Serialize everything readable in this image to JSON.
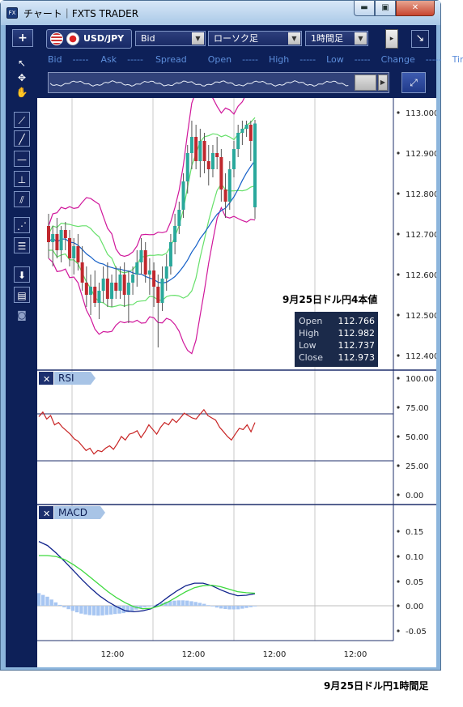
{
  "window": {
    "app_icon": "FX",
    "title": "チャート｜FXTS TRADER",
    "min": "▬",
    "max": "▣",
    "close": "✕"
  },
  "toolbar": {
    "add": "+",
    "symbol": "USD/JPY",
    "price_type": "Bid",
    "chart_type": "ローソク足",
    "timeframe": "1時間足",
    "detach": "↘",
    "dropdown_arrow": "▼"
  },
  "quote": {
    "bid_label": "Bid",
    "bid": "-----",
    "ask_label": "Ask",
    "ask": "-----",
    "spread_label": "Spread",
    "open_label": "Open",
    "open": "-----",
    "high_label": "High",
    "high": "-----",
    "low_label": "Low",
    "low": "-----",
    "change_label": "Change",
    "change": "-----",
    "time_label": "Time"
  },
  "tools": [
    "pointer-icon",
    "crosshair-icon",
    "hand-icon",
    "trendline-icon",
    "line-icon",
    "horizontal-line-icon",
    "vertical-line-icon",
    "channel-icon",
    "fibonacci-fan-icon",
    "fibonacci-levels-icon",
    "download-icon",
    "list-icon",
    "camera-icon"
  ],
  "chart": {
    "annotation_title": "9月25日ドル円4本値",
    "ohlc": [
      {
        "label": "Open",
        "value": "112.766"
      },
      {
        "label": "High",
        "value": "112.982"
      },
      {
        "label": "Low",
        "value": "112.737"
      },
      {
        "label": "Close",
        "value": "112.973"
      }
    ],
    "price_ticks": [
      "113.000",
      "112.900",
      "112.800",
      "112.700",
      "112.600",
      "112.500",
      "112.400"
    ],
    "time_ticks": [
      "12:00",
      "12:00",
      "12:00",
      "12:00"
    ],
    "rsi": {
      "close": "✕",
      "label": "RSI",
      "ticks": [
        "100.00",
        "75.00",
        "50.00",
        "25.00",
        "0.00"
      ]
    },
    "macd": {
      "close": "✕",
      "label": "MACD",
      "ticks": [
        "0.15",
        "0.10",
        "0.05",
        "0.00",
        "-0.05"
      ]
    },
    "colors": {
      "up": "#2aa89c",
      "down": "#c0282e",
      "bollinger_outer": "#d0179b",
      "bollinger_inner": "#66e06a",
      "ma": "#1560c8",
      "rsi": "#c82424",
      "macd": "#10238c",
      "signal": "#3ed93e",
      "hist": "#a7c6f2"
    }
  },
  "chart_data": {
    "type": "candlestick",
    "ylim": [
      112.36,
      113.06
    ],
    "rsi_levels": [
      70,
      30
    ],
    "candles": [
      {
        "o": 112.72,
        "h": 112.75,
        "l": 112.64,
        "c": 112.68
      },
      {
        "o": 112.68,
        "h": 112.72,
        "l": 112.62,
        "c": 112.7
      },
      {
        "o": 112.7,
        "h": 112.74,
        "l": 112.64,
        "c": 112.66
      },
      {
        "o": 112.66,
        "h": 112.72,
        "l": 112.63,
        "c": 112.71
      },
      {
        "o": 112.71,
        "h": 112.73,
        "l": 112.66,
        "c": 112.69
      },
      {
        "o": 112.69,
        "h": 112.71,
        "l": 112.62,
        "c": 112.64
      },
      {
        "o": 112.64,
        "h": 112.69,
        "l": 112.6,
        "c": 112.67
      },
      {
        "o": 112.67,
        "h": 112.7,
        "l": 112.61,
        "c": 112.63
      },
      {
        "o": 112.63,
        "h": 112.67,
        "l": 112.56,
        "c": 112.58
      },
      {
        "o": 112.58,
        "h": 112.62,
        "l": 112.52,
        "c": 112.55
      },
      {
        "o": 112.55,
        "h": 112.6,
        "l": 112.5,
        "c": 112.57
      },
      {
        "o": 112.57,
        "h": 112.61,
        "l": 112.52,
        "c": 112.53
      },
      {
        "o": 112.53,
        "h": 112.58,
        "l": 112.49,
        "c": 112.56
      },
      {
        "o": 112.56,
        "h": 112.62,
        "l": 112.53,
        "c": 112.59
      },
      {
        "o": 112.59,
        "h": 112.63,
        "l": 112.52,
        "c": 112.54
      },
      {
        "o": 112.54,
        "h": 112.6,
        "l": 112.52,
        "c": 112.58
      },
      {
        "o": 112.58,
        "h": 112.62,
        "l": 112.54,
        "c": 112.56
      },
      {
        "o": 112.56,
        "h": 112.62,
        "l": 112.54,
        "c": 112.6
      },
      {
        "o": 112.6,
        "h": 112.63,
        "l": 112.52,
        "c": 112.55
      },
      {
        "o": 112.55,
        "h": 112.61,
        "l": 112.48,
        "c": 112.58
      },
      {
        "o": 112.58,
        "h": 112.62,
        "l": 112.55,
        "c": 112.6
      },
      {
        "o": 112.6,
        "h": 112.66,
        "l": 112.57,
        "c": 112.63
      },
      {
        "o": 112.63,
        "h": 112.69,
        "l": 112.6,
        "c": 112.66
      },
      {
        "o": 112.66,
        "h": 112.68,
        "l": 112.58,
        "c": 112.6
      },
      {
        "o": 112.6,
        "h": 112.64,
        "l": 112.55,
        "c": 112.61
      },
      {
        "o": 112.61,
        "h": 112.63,
        "l": 112.52,
        "c": 112.57
      },
      {
        "o": 112.57,
        "h": 112.6,
        "l": 112.42,
        "c": 112.53
      },
      {
        "o": 112.53,
        "h": 112.62,
        "l": 112.51,
        "c": 112.59
      },
      {
        "o": 112.59,
        "h": 112.65,
        "l": 112.56,
        "c": 112.62
      },
      {
        "o": 112.62,
        "h": 112.7,
        "l": 112.6,
        "c": 112.68
      },
      {
        "o": 112.68,
        "h": 112.75,
        "l": 112.65,
        "c": 112.72
      },
      {
        "o": 112.72,
        "h": 112.78,
        "l": 112.7,
        "c": 112.76
      },
      {
        "o": 112.76,
        "h": 112.85,
        "l": 112.74,
        "c": 112.83
      },
      {
        "o": 112.83,
        "h": 112.92,
        "l": 112.8,
        "c": 112.9
      },
      {
        "o": 112.9,
        "h": 112.98,
        "l": 112.86,
        "c": 112.94
      },
      {
        "o": 112.94,
        "h": 112.97,
        "l": 112.86,
        "c": 112.88
      },
      {
        "o": 112.88,
        "h": 112.96,
        "l": 112.84,
        "c": 112.93
      },
      {
        "o": 112.93,
        "h": 112.95,
        "l": 112.85,
        "c": 112.88
      },
      {
        "o": 112.88,
        "h": 112.92,
        "l": 112.82,
        "c": 112.86
      },
      {
        "o": 112.86,
        "h": 112.92,
        "l": 112.84,
        "c": 112.9
      },
      {
        "o": 112.9,
        "h": 112.94,
        "l": 112.86,
        "c": 112.89
      },
      {
        "o": 112.89,
        "h": 112.91,
        "l": 112.78,
        "c": 112.81
      },
      {
        "o": 112.81,
        "h": 112.85,
        "l": 112.74,
        "c": 112.78
      },
      {
        "o": 112.78,
        "h": 112.88,
        "l": 112.76,
        "c": 112.86
      },
      {
        "o": 112.86,
        "h": 112.93,
        "l": 112.84,
        "c": 112.91
      },
      {
        "o": 112.91,
        "h": 112.97,
        "l": 112.89,
        "c": 112.95
      },
      {
        "o": 112.95,
        "h": 112.98,
        "l": 112.92,
        "c": 112.96
      },
      {
        "o": 112.96,
        "h": 112.98,
        "l": 112.94,
        "c": 112.97
      },
      {
        "o": 112.97,
        "h": 112.98,
        "l": 112.88,
        "c": 112.93
      },
      {
        "o": 112.766,
        "h": 112.982,
        "l": 112.737,
        "c": 112.973
      }
    ],
    "rsi": [
      67,
      71,
      65,
      68,
      60,
      62,
      58,
      55,
      52,
      48,
      46,
      42,
      38,
      40,
      35,
      38,
      37,
      40,
      42,
      39,
      44,
      50,
      47,
      52,
      53,
      55,
      49,
      54,
      60,
      56,
      52,
      58,
      62,
      60,
      65,
      62,
      66,
      70,
      68,
      66,
      65,
      69,
      73,
      68,
      66,
      64,
      58,
      54,
      50,
      47,
      52,
      57,
      56,
      60,
      54,
      62
    ],
    "macd": [
      0.128,
      0.12,
      0.105,
      0.088,
      0.07,
      0.052,
      0.035,
      0.02,
      0.008,
      -0.002,
      -0.01,
      -0.012,
      -0.01,
      -0.006,
      0.005,
      0.018,
      0.03,
      0.04,
      0.045,
      0.045,
      0.04,
      0.032,
      0.025,
      0.02,
      0.021,
      0.024
    ],
    "signal": [
      0.1,
      0.1,
      0.098,
      0.092,
      0.082,
      0.07,
      0.056,
      0.042,
      0.028,
      0.016,
      0.006,
      -0.002,
      -0.006,
      -0.005,
      0.0,
      0.008,
      0.018,
      0.028,
      0.036,
      0.04,
      0.041,
      0.038,
      0.033,
      0.028,
      0.026,
      0.025
    ]
  },
  "caption": "9月25日ドル円1時間足"
}
